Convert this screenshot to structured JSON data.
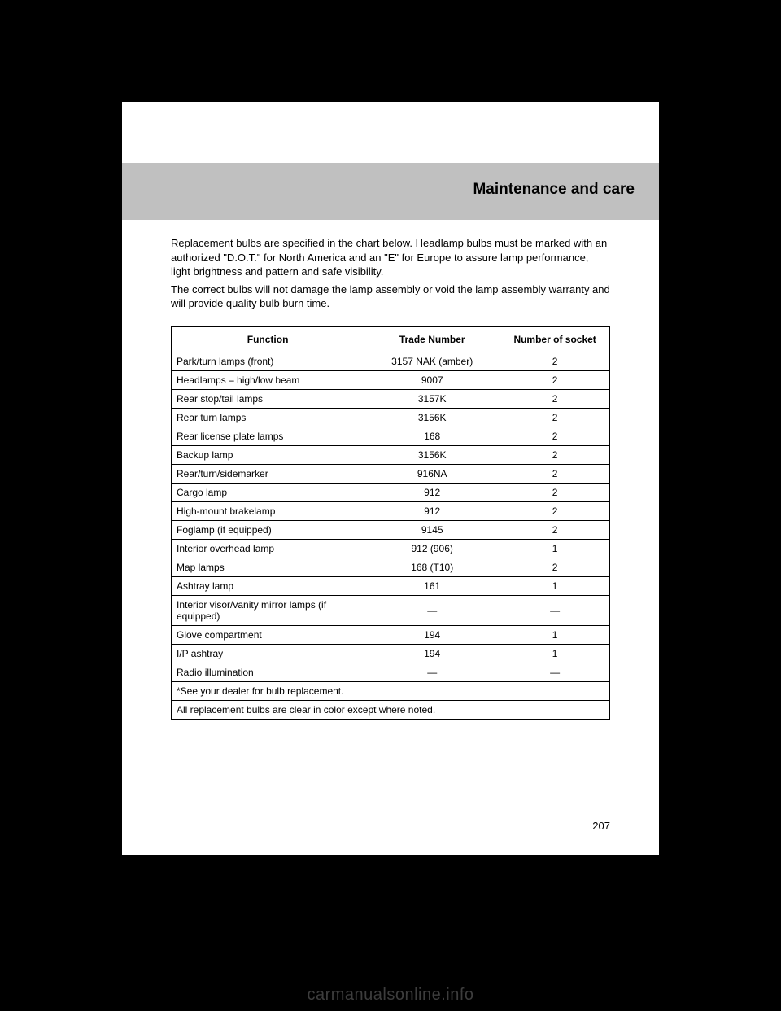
{
  "header": {
    "title": "Maintenance and care"
  },
  "intro": {
    "p1": "Replacement bulbs are specified in the chart below. Headlamp bulbs must be marked with an authorized \"D.O.T.\" for North America and an \"E\" for Europe to assure lamp performance, light brightness and pattern and safe visibility.",
    "p2": "The correct bulbs will not damage the lamp assembly or void the lamp assembly warranty and will provide quality bulb burn time."
  },
  "table": {
    "columns": [
      "Function",
      "Trade Number",
      "Number of socket"
    ],
    "rows": [
      {
        "func": "Park/turn lamps (front)",
        "trade": "3157 NAK (amber)",
        "sock": "2"
      },
      {
        "func": "Headlamps – high/low beam",
        "trade": "9007",
        "sock": "2"
      },
      {
        "func": "Rear stop/tail lamps",
        "trade": "3157K",
        "sock": "2"
      },
      {
        "func": "Rear turn lamps",
        "trade": "3156K",
        "sock": "2"
      },
      {
        "func": "Rear license plate lamps",
        "trade": "168",
        "sock": "2"
      },
      {
        "func": "Backup lamp",
        "trade": "3156K",
        "sock": "2"
      },
      {
        "func": "Rear/turn/sidemarker",
        "trade": "916NA",
        "sock": "2"
      },
      {
        "func": "Cargo lamp",
        "trade": "912",
        "sock": "2"
      },
      {
        "func": "High-mount brakelamp",
        "trade": "912",
        "sock": "2"
      },
      {
        "func": "Foglamp (if equipped)",
        "trade": "9145",
        "sock": "2"
      },
      {
        "func": "Interior overhead lamp",
        "trade": "912 (906)",
        "sock": "1"
      },
      {
        "func": "Map lamps",
        "trade": "168 (T10)",
        "sock": "2"
      },
      {
        "func": "Ashtray lamp",
        "trade": "161",
        "sock": "1"
      },
      {
        "func": "Interior visor/vanity mirror lamps (if equipped)",
        "trade": "—",
        "sock": "—"
      },
      {
        "func": "Glove compartment",
        "trade": "194",
        "sock": "1"
      },
      {
        "func": "I/P ashtray",
        "trade": "194",
        "sock": "1"
      },
      {
        "func": "Radio illumination",
        "trade": "—",
        "sock": "—"
      }
    ],
    "fullrow1": "*See your dealer for bulb replacement.",
    "fullrow2": "All replacement bulbs are clear in color except where noted."
  },
  "page_number": "207",
  "watermark": "carmanualsonline.info",
  "style": {
    "page_bg": "#ffffff",
    "body_bg": "#000000",
    "header_bg": "#c0c0c0",
    "text_color": "#000000",
    "border_color": "#000000",
    "watermark_color": "#666666",
    "header_fontsize": 19,
    "body_fontsize": 13,
    "table_fontsize": 12
  }
}
